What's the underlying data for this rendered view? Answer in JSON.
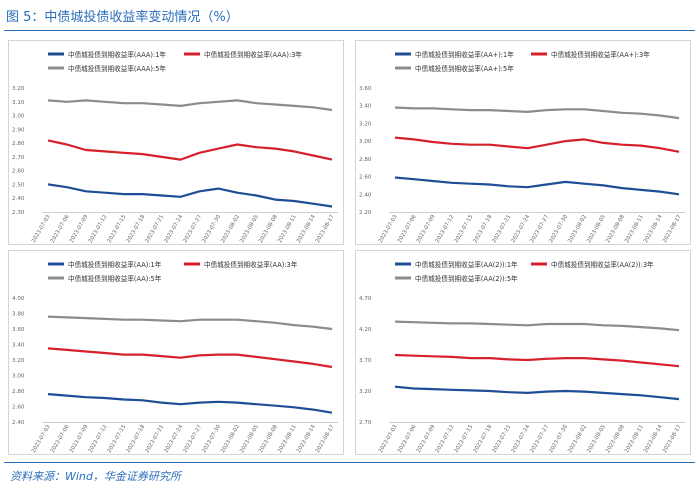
{
  "figure": {
    "title": "图 5：中债城投债收益率变动情况（%）",
    "source": "资料来源：Wind，华金证券研究所"
  },
  "chart_data": [
    {
      "type": "line",
      "legend_position": "top-left",
      "grid": false,
      "x": [
        "2023-07-03",
        "2023-07-06",
        "2023-07-09",
        "2023-07-12",
        "2023-07-15",
        "2023-07-18",
        "2023-07-21",
        "2023-07-24",
        "2023-07-27",
        "2023-07-30",
        "2023-08-02",
        "2023-08-05",
        "2023-08-08",
        "2023-08-11",
        "2023-08-14",
        "2023-08-17"
      ],
      "ylim": [
        2.3,
        3.2
      ],
      "yticks": [
        "3.20",
        "3.10",
        "3.00",
        "2.90",
        "2.80",
        "2.70",
        "2.60",
        "2.50",
        "2.40",
        "2.30"
      ],
      "series": [
        {
          "name": "中债城投债到期收益率(AAA):1年",
          "color": "#1f4e96",
          "values": [
            2.5,
            2.48,
            2.45,
            2.44,
            2.43,
            2.43,
            2.42,
            2.41,
            2.45,
            2.47,
            2.44,
            2.42,
            2.39,
            2.38,
            2.36,
            2.34
          ]
        },
        {
          "name": "中债城投债到期收益率(AAA):3年",
          "color": "#d6202b",
          "values": [
            2.82,
            2.79,
            2.75,
            2.74,
            2.73,
            2.72,
            2.7,
            2.68,
            2.73,
            2.76,
            2.79,
            2.77,
            2.76,
            2.74,
            2.71,
            2.68
          ]
        },
        {
          "name": "中债城投债到期收益率(AAA):5年",
          "color": "#8c8c8c",
          "values": [
            3.11,
            3.1,
            3.11,
            3.1,
            3.09,
            3.09,
            3.08,
            3.07,
            3.09,
            3.1,
            3.11,
            3.09,
            3.08,
            3.07,
            3.06,
            3.04
          ]
        }
      ]
    },
    {
      "type": "line",
      "legend_position": "top-left",
      "grid": false,
      "x": [
        "2023-07-03",
        "2023-07-06",
        "2023-07-09",
        "2023-07-12",
        "2023-07-15",
        "2023-07-18",
        "2023-07-21",
        "2023-07-24",
        "2023-07-27",
        "2023-07-30",
        "2023-08-02",
        "2023-08-05",
        "2023-08-08",
        "2023-08-11",
        "2023-08-14",
        "2023-08-17"
      ],
      "ylim": [
        2.2,
        3.6
      ],
      "yticks": [
        "3.60",
        "3.40",
        "3.20",
        "3.00",
        "2.80",
        "2.60",
        "2.40",
        "2.20"
      ],
      "series": [
        {
          "name": "中债城投债到期收益率(AA+):1年",
          "color": "#1f4e96",
          "values": [
            2.59,
            2.57,
            2.55,
            2.53,
            2.52,
            2.51,
            2.49,
            2.48,
            2.51,
            2.54,
            2.52,
            2.5,
            2.47,
            2.45,
            2.43,
            2.4
          ]
        },
        {
          "name": "中债城投债到期收益率(AA+):3年",
          "color": "#d6202b",
          "values": [
            3.04,
            3.02,
            2.99,
            2.97,
            2.96,
            2.96,
            2.94,
            2.92,
            2.96,
            3.0,
            3.02,
            2.98,
            2.96,
            2.95,
            2.92,
            2.88
          ]
        },
        {
          "name": "中债城投债到期收益率(AA+):5年",
          "color": "#8c8c8c",
          "values": [
            3.38,
            3.37,
            3.37,
            3.36,
            3.35,
            3.35,
            3.34,
            3.33,
            3.35,
            3.36,
            3.36,
            3.34,
            3.32,
            3.31,
            3.29,
            3.26
          ]
        }
      ]
    },
    {
      "type": "line",
      "legend_position": "top-left",
      "grid": false,
      "x": [
        "2023-07-03",
        "2023-07-06",
        "2023-07-09",
        "2023-07-12",
        "2023-07-15",
        "2023-07-18",
        "2023-07-21",
        "2023-07-24",
        "2023-07-27",
        "2023-07-30",
        "2023-08-02",
        "2023-08-05",
        "2023-08-08",
        "2023-08-11",
        "2023-08-14",
        "2023-08-17"
      ],
      "ylim": [
        2.4,
        4.0
      ],
      "yticks": [
        "4.00",
        "3.80",
        "3.60",
        "3.40",
        "3.20",
        "3.00",
        "2.80",
        "2.60",
        "2.40"
      ],
      "series": [
        {
          "name": "中债城投债到期收益率(AA):1年",
          "color": "#1f4e96",
          "values": [
            2.76,
            2.74,
            2.72,
            2.71,
            2.69,
            2.68,
            2.65,
            2.63,
            2.65,
            2.66,
            2.65,
            2.63,
            2.61,
            2.59,
            2.56,
            2.52
          ]
        },
        {
          "name": "中债城投债到期收益率(AA):3年",
          "color": "#d6202b",
          "values": [
            3.35,
            3.33,
            3.31,
            3.29,
            3.27,
            3.27,
            3.25,
            3.23,
            3.26,
            3.27,
            3.27,
            3.24,
            3.21,
            3.18,
            3.15,
            3.11
          ]
        },
        {
          "name": "中债城投债到期收益率(AA):5年",
          "color": "#8c8c8c",
          "values": [
            3.76,
            3.75,
            3.74,
            3.73,
            3.72,
            3.72,
            3.71,
            3.7,
            3.72,
            3.72,
            3.72,
            3.7,
            3.68,
            3.65,
            3.63,
            3.6
          ]
        }
      ]
    },
    {
      "type": "line",
      "legend_position": "top-left",
      "grid": false,
      "x": [
        "2023-07-03",
        "2023-07-06",
        "2023-07-09",
        "2023-07-12",
        "2023-07-15",
        "2023-07-18",
        "2023-07-21",
        "2023-07-24",
        "2023-07-27",
        "2023-07-30",
        "2023-08-02",
        "2023-08-05",
        "2023-08-08",
        "2023-08-11",
        "2023-08-14",
        "2023-08-17"
      ],
      "ylim": [
        2.7,
        4.7
      ],
      "yticks": [
        "4.70",
        "4.20",
        "3.70",
        "3.20",
        "2.70"
      ],
      "series": [
        {
          "name": "中债城投债到期收益率(AA(2)):1年",
          "color": "#1f4e96",
          "values": [
            3.27,
            3.24,
            3.23,
            3.22,
            3.21,
            3.2,
            3.18,
            3.17,
            3.19,
            3.2,
            3.19,
            3.17,
            3.15,
            3.13,
            3.1,
            3.07
          ]
        },
        {
          "name": "中债城投债到期收益率(AA(2)):3年",
          "color": "#d6202b",
          "values": [
            3.78,
            3.77,
            3.76,
            3.75,
            3.73,
            3.73,
            3.71,
            3.7,
            3.72,
            3.73,
            3.73,
            3.71,
            3.69,
            3.66,
            3.63,
            3.6
          ]
        },
        {
          "name": "中债城投债到期收益率(AA(2)):5年",
          "color": "#8c8c8c",
          "values": [
            4.32,
            4.31,
            4.3,
            4.29,
            4.29,
            4.28,
            4.27,
            4.26,
            4.28,
            4.28,
            4.28,
            4.26,
            4.25,
            4.23,
            4.21,
            4.18
          ]
        }
      ]
    }
  ]
}
